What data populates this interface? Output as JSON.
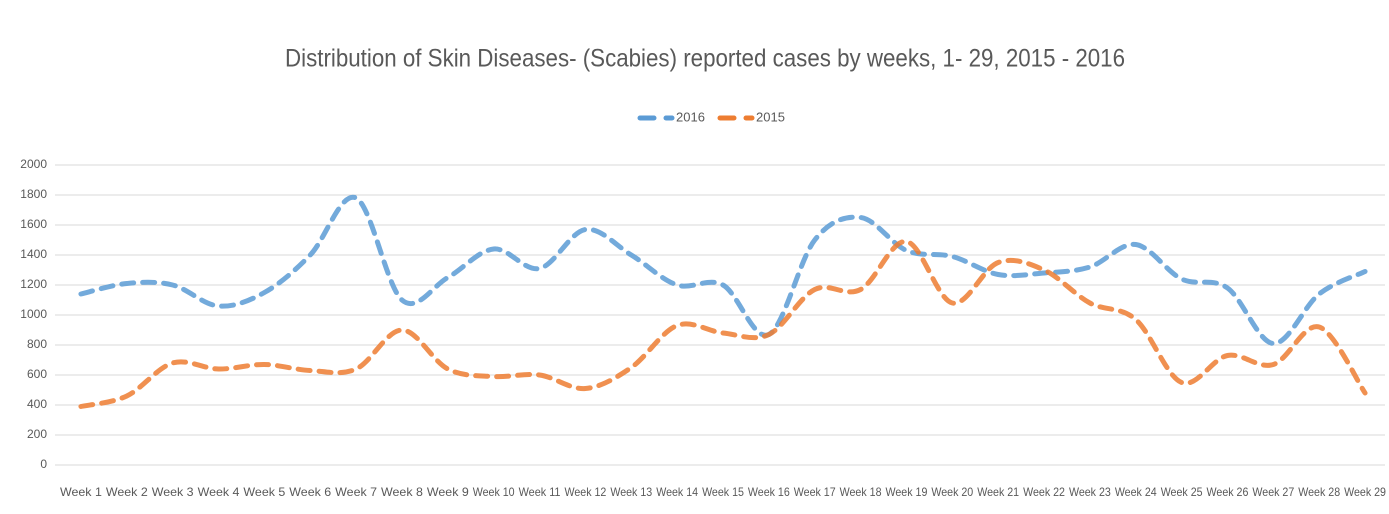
{
  "chart_data": {
    "type": "line",
    "title": "Distribution of Skin Diseases- (Scabies) reported cases by weeks, 1- 29, 2015 - 2016",
    "categories": [
      "Week 1",
      "Week 2",
      "Week 3",
      "Week 4",
      "Week 5",
      "Week 6",
      "Week 7",
      "Week 8",
      "Week 9",
      "Week 10",
      "Week 11",
      "Week 12",
      "Week 13",
      "Week 14",
      "Week 15",
      "Week 16",
      "Week 17",
      "Week 18",
      "Week 19",
      "Week 20",
      "Week 21",
      "Week 22",
      "Week 23",
      "Week 24",
      "Week 25",
      "Week 26",
      "Week 27",
      "Week 28",
      "Week 29"
    ],
    "series": [
      {
        "name": "2016",
        "color": "#5b9bd5",
        "values": [
          1140,
          1210,
          1200,
          1060,
          1150,
          1400,
          1780,
          1100,
          1250,
          1440,
          1310,
          1570,
          1400,
          1200,
          1200,
          870,
          1500,
          1650,
          1430,
          1390,
          1270,
          1280,
          1320,
          1470,
          1240,
          1180,
          810,
          1140,
          1290
        ]
      },
      {
        "name": "2015",
        "color": "#ed7d31",
        "values": [
          390,
          460,
          680,
          640,
          670,
          630,
          640,
          900,
          640,
          590,
          600,
          510,
          650,
          930,
          880,
          870,
          1170,
          1170,
          1490,
          1080,
          1350,
          1300,
          1080,
          970,
          550,
          730,
          670,
          920,
          480
        ]
      }
    ],
    "ylim": [
      0,
      2000
    ],
    "yticks": [
      0,
      200,
      400,
      600,
      800,
      1000,
      1200,
      1400,
      1600,
      1800,
      2000
    ],
    "grid": true,
    "legend": "top"
  }
}
